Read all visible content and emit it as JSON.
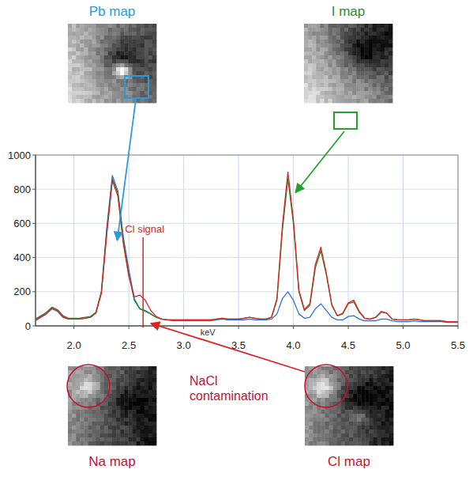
{
  "chart_data": {
    "type": "line",
    "xlabel": "keV",
    "x": [
      1.65,
      1.7,
      1.75,
      1.8,
      1.85,
      1.9,
      1.95,
      2.0,
      2.05,
      2.1,
      2.15,
      2.2,
      2.25,
      2.3,
      2.35,
      2.4,
      2.45,
      2.5,
      2.55,
      2.6,
      2.65,
      2.7,
      2.75,
      2.8,
      2.85,
      2.9,
      2.95,
      3.0,
      3.05,
      3.1,
      3.15,
      3.2,
      3.25,
      3.3,
      3.35,
      3.4,
      3.45,
      3.5,
      3.55,
      3.6,
      3.65,
      3.7,
      3.75,
      3.8,
      3.85,
      3.9,
      3.95,
      4.0,
      4.05,
      4.1,
      4.15,
      4.2,
      4.25,
      4.3,
      4.35,
      4.4,
      4.45,
      4.5,
      4.55,
      4.6,
      4.65,
      4.7,
      4.75,
      4.8,
      4.85,
      4.9,
      4.95,
      5.0,
      5.05,
      5.1,
      5.15,
      5.2,
      5.25,
      5.3,
      5.35,
      5.4,
      5.45,
      5.5
    ],
    "series": [
      {
        "color": "#2a6fe0",
        "values": [
          30,
          50,
          70,
          100,
          85,
          50,
          40,
          40,
          40,
          45,
          50,
          75,
          200,
          580,
          880,
          790,
          520,
          330,
          160,
          100,
          85,
          70,
          50,
          40,
          35,
          30,
          30,
          30,
          30,
          30,
          30,
          30,
          30,
          35,
          40,
          35,
          35,
          35,
          35,
          40,
          35,
          35,
          35,
          40,
          70,
          160,
          200,
          150,
          70,
          45,
          50,
          100,
          130,
          90,
          50,
          35,
          35,
          55,
          60,
          40,
          30,
          30,
          30,
          40,
          40,
          30,
          25,
          25,
          25,
          30,
          25,
          25,
          25,
          25,
          25,
          20,
          20,
          20
        ]
      },
      {
        "color": "#1f8a2a",
        "values": [
          40,
          60,
          80,
          110,
          95,
          60,
          45,
          45,
          45,
          50,
          55,
          80,
          200,
          560,
          860,
          780,
          500,
          300,
          150,
          100,
          90,
          70,
          50,
          40,
          35,
          35,
          35,
          35,
          35,
          35,
          35,
          35,
          35,
          40,
          45,
          40,
          40,
          40,
          45,
          50,
          45,
          40,
          40,
          50,
          150,
          560,
          860,
          600,
          200,
          90,
          120,
          340,
          440,
          300,
          120,
          60,
          70,
          130,
          140,
          80,
          45,
          40,
          50,
          80,
          75,
          40,
          35,
          35,
          35,
          40,
          35,
          30,
          30,
          30,
          30,
          25,
          25,
          25
        ]
      },
      {
        "color": "#e02424",
        "values": [
          35,
          55,
          75,
          105,
          90,
          55,
          40,
          40,
          40,
          45,
          50,
          75,
          190,
          540,
          850,
          760,
          480,
          290,
          170,
          180,
          150,
          90,
          55,
          40,
          35,
          35,
          35,
          35,
          35,
          35,
          35,
          35,
          35,
          40,
          45,
          40,
          40,
          40,
          45,
          50,
          45,
          40,
          40,
          50,
          160,
          590,
          900,
          620,
          210,
          95,
          130,
          360,
          460,
          310,
          125,
          60,
          75,
          135,
          150,
          85,
          45,
          40,
          50,
          85,
          75,
          40,
          35,
          35,
          35,
          40,
          35,
          30,
          30,
          30,
          30,
          25,
          25,
          25
        ]
      }
    ],
    "xlim": [
      1.65,
      5.5
    ],
    "xticks": [
      {
        "value": 2,
        "label": "2.0"
      },
      2.5,
      {
        "value": 3,
        "label": "3.0"
      },
      3.5,
      {
        "value": 4,
        "label": "4.0"
      },
      4.5,
      {
        "value": 5,
        "label": "5.0"
      },
      5.5
    ],
    "ylim": [
      0,
      1000
    ],
    "yticks": [
      0,
      200,
      400,
      600,
      800,
      1000
    ],
    "grid": true,
    "annotations": [
      {
        "text": "Cl signal",
        "x": 2.63
      }
    ]
  },
  "maps": [
    {
      "label": "Pb map"
    },
    {
      "label": "I map"
    },
    {
      "label": "Na map"
    },
    {
      "label": "Cl map"
    }
  ],
  "contamination_label": "NaCl contamination"
}
